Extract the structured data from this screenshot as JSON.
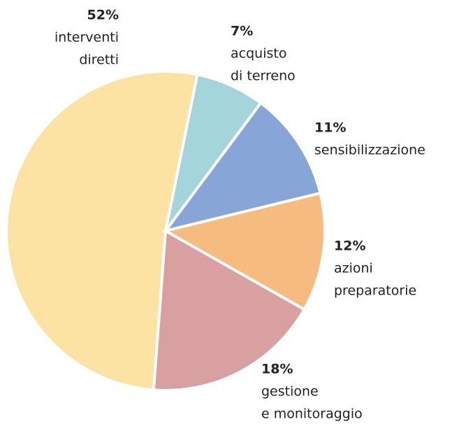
{
  "chart_data": {
    "type": "pie",
    "categories": [
      [
        "interventi",
        "diretti"
      ],
      [
        "acquisto",
        "di terreno"
      ],
      [
        "sensibilizzazione"
      ],
      [
        "azioni",
        "preparatorie"
      ],
      [
        "gestione",
        "e monitoraggio"
      ]
    ],
    "values": [
      52,
      7,
      11,
      12,
      18
    ],
    "value_labels": [
      "52%",
      "7%",
      "11%",
      "12%",
      "18%"
    ],
    "colors": [
      "#fce3a4",
      "#a3d5da",
      "#87a5d6",
      "#f5bb7f",
      "#d8a0a0"
    ]
  }
}
